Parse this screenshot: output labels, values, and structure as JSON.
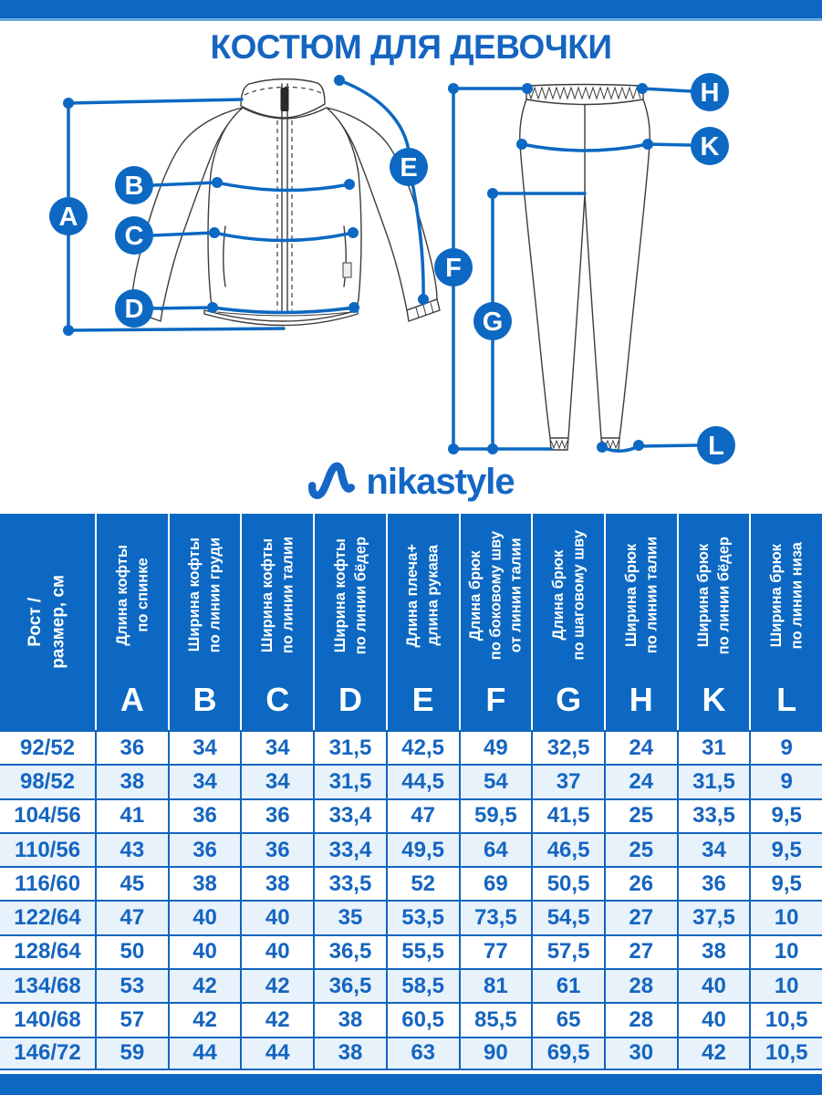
{
  "meta": {
    "title": "КОСТЮМ ДЛЯ ДЕВОЧКИ",
    "brand": "nikastyle"
  },
  "colors": {
    "primary_blue": "#0c68c2",
    "grid_blue": "#1165bd",
    "text_blue": "#1565c0",
    "row_tint": "#e7f2fb",
    "topbar_underline": "#69aade"
  },
  "diagram": {
    "labels": [
      "A",
      "B",
      "C",
      "D",
      "E",
      "F",
      "G",
      "H",
      "K",
      "L"
    ]
  },
  "table": {
    "row_header": {
      "label_lines": [
        "Рост /",
        "размер, см"
      ]
    },
    "columns": [
      {
        "letter": "A",
        "label_lines": [
          "Длина кофты",
          "по спинке"
        ]
      },
      {
        "letter": "B",
        "label_lines": [
          "Ширина кофты",
          "по линии груди"
        ]
      },
      {
        "letter": "C",
        "label_lines": [
          "Ширина кофты",
          "по линии талии"
        ]
      },
      {
        "letter": "D",
        "label_lines": [
          "Ширина кофты",
          "по линии бёдер"
        ]
      },
      {
        "letter": "E",
        "label_lines": [
          "Длина плеча+",
          "длина рукава"
        ]
      },
      {
        "letter": "F",
        "label_lines": [
          "Длина брюк",
          "по боковому шву",
          "от линии талии"
        ]
      },
      {
        "letter": "G",
        "label_lines": [
          "Длина брюк",
          "по шаговому шву"
        ]
      },
      {
        "letter": "H",
        "label_lines": [
          "Ширина брюк",
          "по линии талии"
        ]
      },
      {
        "letter": "K",
        "label_lines": [
          "Ширина брюк",
          "по линии бёдер"
        ]
      },
      {
        "letter": "L",
        "label_lines": [
          "Ширина брюк",
          "по линии низа"
        ]
      }
    ],
    "rows": [
      {
        "size": "92/52",
        "values": [
          "36",
          "34",
          "34",
          "31,5",
          "42,5",
          "49",
          "32,5",
          "24",
          "31",
          "9"
        ]
      },
      {
        "size": "98/52",
        "values": [
          "38",
          "34",
          "34",
          "31,5",
          "44,5",
          "54",
          "37",
          "24",
          "31,5",
          "9"
        ]
      },
      {
        "size": "104/56",
        "values": [
          "41",
          "36",
          "36",
          "33,4",
          "47",
          "59,5",
          "41,5",
          "25",
          "33,5",
          "9,5"
        ]
      },
      {
        "size": "110/56",
        "values": [
          "43",
          "36",
          "36",
          "33,4",
          "49,5",
          "64",
          "46,5",
          "25",
          "34",
          "9,5"
        ]
      },
      {
        "size": "116/60",
        "values": [
          "45",
          "38",
          "38",
          "33,5",
          "52",
          "69",
          "50,5",
          "26",
          "36",
          "9,5"
        ]
      },
      {
        "size": "122/64",
        "values": [
          "47",
          "40",
          "40",
          "35",
          "53,5",
          "73,5",
          "54,5",
          "27",
          "37,5",
          "10"
        ]
      },
      {
        "size": "128/64",
        "values": [
          "50",
          "40",
          "40",
          "36,5",
          "55,5",
          "77",
          "57,5",
          "27",
          "38",
          "10"
        ]
      },
      {
        "size": "134/68",
        "values": [
          "53",
          "42",
          "42",
          "36,5",
          "58,5",
          "81",
          "61",
          "28",
          "40",
          "10"
        ]
      },
      {
        "size": "140/68",
        "values": [
          "57",
          "42",
          "42",
          "38",
          "60,5",
          "85,5",
          "65",
          "28",
          "40",
          "10,5"
        ]
      },
      {
        "size": "146/72",
        "values": [
          "59",
          "44",
          "44",
          "38",
          "63",
          "90",
          "69,5",
          "30",
          "42",
          "10,5"
        ]
      }
    ]
  }
}
